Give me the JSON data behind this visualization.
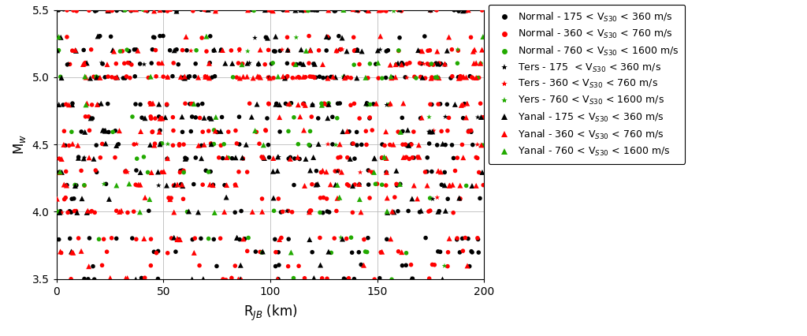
{
  "xlabel": "R$_{JB}$ (km)",
  "ylabel": "M$_w$",
  "xlim": [
    0,
    200
  ],
  "ylim": [
    3.5,
    5.5
  ],
  "xticks": [
    0,
    50,
    100,
    150,
    200
  ],
  "yticks": [
    3.5,
    4.0,
    4.5,
    5.0,
    5.5
  ],
  "legend_entries": [
    {
      "label": "Normal - 175 < V$_{S30}$ < 360 m/s",
      "color": "black",
      "marker": "o"
    },
    {
      "label": "Normal - 360 < V$_{S30}$ < 760 m/s",
      "color": "red",
      "marker": "o"
    },
    {
      "label": "Normal - 760 < V$_{S30}$ < 1600 m/s",
      "color": "#22aa00",
      "marker": "o"
    },
    {
      "label": "Ters - 175  < V$_{S30}$ < 360 m/s",
      "color": "black",
      "marker": "*"
    },
    {
      "label": "Ters - 360 < V$_{S30}$ < 760 m/s",
      "color": "red",
      "marker": "*"
    },
    {
      "label": "Yers - 760 < V$_{S30}$ < 1600 m/s",
      "color": "#22aa00",
      "marker": "*"
    },
    {
      "label": "Yanal - 175 < V$_{S30}$ < 360 m/s",
      "color": "black",
      "marker": "^"
    },
    {
      "label": "Yanal - 360 < V$_{S30}$ < 760 m/s",
      "color": "red",
      "marker": "^"
    },
    {
      "label": "Yanal - 760 < V$_{S30}$ < 1600 m/s",
      "color": "#22aa00",
      "marker": "^"
    }
  ],
  "marker_size_circle": 4,
  "marker_size_star": 5,
  "marker_size_triangle": 5,
  "background_color": "#ffffff",
  "grid_color": "#bbbbbb",
  "seed": 42,
  "groups": [
    {
      "n": 300,
      "color": "black",
      "marker": "o",
      "ms_key": "marker_size_circle"
    },
    {
      "n": 320,
      "color": "red",
      "marker": "o",
      "ms_key": "marker_size_circle"
    },
    {
      "n": 70,
      "color": "#22aa00",
      "marker": "o",
      "ms_key": "marker_size_circle"
    },
    {
      "n": 18,
      "color": "black",
      "marker": "*",
      "ms_key": "marker_size_star"
    },
    {
      "n": 20,
      "color": "red",
      "marker": "*",
      "ms_key": "marker_size_star"
    },
    {
      "n": 12,
      "color": "#22aa00",
      "marker": "*",
      "ms_key": "marker_size_star"
    },
    {
      "n": 160,
      "color": "black",
      "marker": "^",
      "ms_key": "marker_size_triangle"
    },
    {
      "n": 200,
      "color": "red",
      "marker": "^",
      "ms_key": "marker_size_triangle"
    },
    {
      "n": 35,
      "color": "#22aa00",
      "marker": "^",
      "ms_key": "marker_size_triangle"
    }
  ]
}
